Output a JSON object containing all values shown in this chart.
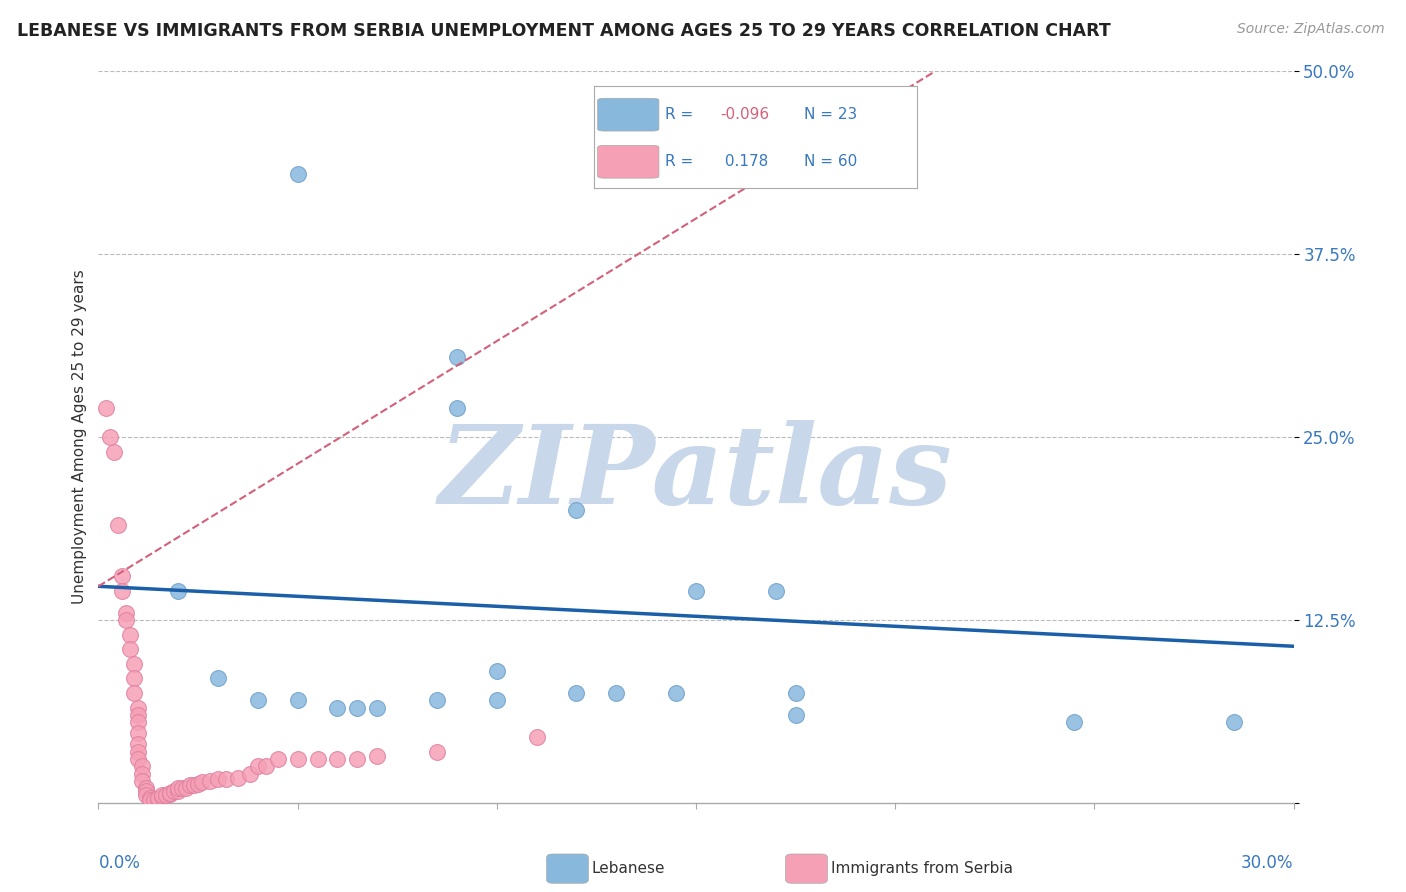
{
  "title": "LEBANESE VS IMMIGRANTS FROM SERBIA UNEMPLOYMENT AMONG AGES 25 TO 29 YEARS CORRELATION CHART",
  "source": "Source: ZipAtlas.com",
  "ylabel": "Unemployment Among Ages 25 to 29 years",
  "xmin": 0.0,
  "xmax": 0.3,
  "ymin": 0.0,
  "ymax": 0.5,
  "yticks": [
    0.0,
    0.125,
    0.25,
    0.375,
    0.5
  ],
  "ytick_labels": [
    "",
    "12.5%",
    "25.0%",
    "37.5%",
    "50.0%"
  ],
  "blue_scatter": [
    [
      0.05,
      0.43
    ],
    [
      0.09,
      0.305
    ],
    [
      0.09,
      0.27
    ],
    [
      0.12,
      0.2
    ],
    [
      0.15,
      0.145
    ],
    [
      0.17,
      0.145
    ],
    [
      0.02,
      0.145
    ],
    [
      0.03,
      0.085
    ],
    [
      0.04,
      0.07
    ],
    [
      0.05,
      0.07
    ],
    [
      0.06,
      0.065
    ],
    [
      0.065,
      0.065
    ],
    [
      0.07,
      0.065
    ],
    [
      0.085,
      0.07
    ],
    [
      0.1,
      0.09
    ],
    [
      0.1,
      0.07
    ],
    [
      0.12,
      0.075
    ],
    [
      0.13,
      0.075
    ],
    [
      0.145,
      0.075
    ],
    [
      0.175,
      0.075
    ],
    [
      0.175,
      0.06
    ],
    [
      0.245,
      0.055
    ],
    [
      0.285,
      0.055
    ]
  ],
  "pink_scatter": [
    [
      0.002,
      0.27
    ],
    [
      0.003,
      0.25
    ],
    [
      0.004,
      0.24
    ],
    [
      0.005,
      0.19
    ],
    [
      0.006,
      0.155
    ],
    [
      0.006,
      0.145
    ],
    [
      0.007,
      0.13
    ],
    [
      0.007,
      0.125
    ],
    [
      0.008,
      0.115
    ],
    [
      0.008,
      0.105
    ],
    [
      0.009,
      0.095
    ],
    [
      0.009,
      0.085
    ],
    [
      0.009,
      0.075
    ],
    [
      0.01,
      0.065
    ],
    [
      0.01,
      0.06
    ],
    [
      0.01,
      0.055
    ],
    [
      0.01,
      0.048
    ],
    [
      0.01,
      0.04
    ],
    [
      0.01,
      0.035
    ],
    [
      0.01,
      0.03
    ],
    [
      0.011,
      0.025
    ],
    [
      0.011,
      0.02
    ],
    [
      0.011,
      0.015
    ],
    [
      0.012,
      0.01
    ],
    [
      0.012,
      0.008
    ],
    [
      0.012,
      0.005
    ],
    [
      0.013,
      0.003
    ],
    [
      0.013,
      0.002
    ],
    [
      0.014,
      0.002
    ],
    [
      0.015,
      0.002
    ],
    [
      0.015,
      0.003
    ],
    [
      0.016,
      0.004
    ],
    [
      0.016,
      0.005
    ],
    [
      0.017,
      0.005
    ],
    [
      0.018,
      0.006
    ],
    [
      0.018,
      0.007
    ],
    [
      0.019,
      0.008
    ],
    [
      0.02,
      0.008
    ],
    [
      0.02,
      0.01
    ],
    [
      0.021,
      0.01
    ],
    [
      0.022,
      0.01
    ],
    [
      0.023,
      0.012
    ],
    [
      0.024,
      0.012
    ],
    [
      0.025,
      0.013
    ],
    [
      0.026,
      0.014
    ],
    [
      0.028,
      0.015
    ],
    [
      0.03,
      0.016
    ],
    [
      0.032,
      0.016
    ],
    [
      0.035,
      0.017
    ],
    [
      0.038,
      0.02
    ],
    [
      0.04,
      0.025
    ],
    [
      0.042,
      0.025
    ],
    [
      0.045,
      0.03
    ],
    [
      0.05,
      0.03
    ],
    [
      0.055,
      0.03
    ],
    [
      0.06,
      0.03
    ],
    [
      0.065,
      0.03
    ],
    [
      0.07,
      0.032
    ],
    [
      0.085,
      0.035
    ],
    [
      0.11,
      0.045
    ]
  ],
  "blue_line": [
    [
      0.0,
      0.148
    ],
    [
      0.3,
      0.107
    ]
  ],
  "pink_line": [
    [
      0.0,
      0.148
    ],
    [
      0.21,
      0.5
    ]
  ],
  "blue_line_color": "#1a5fa8",
  "pink_line_color": "#d4607a",
  "blue_scatter_color": "#89b8dd",
  "pink_scatter_color": "#f5a0b5",
  "watermark": "ZIPatlas",
  "watermark_color": "#c8d8ea",
  "background_color": "#ffffff",
  "grid_color": "#bbbbbb"
}
